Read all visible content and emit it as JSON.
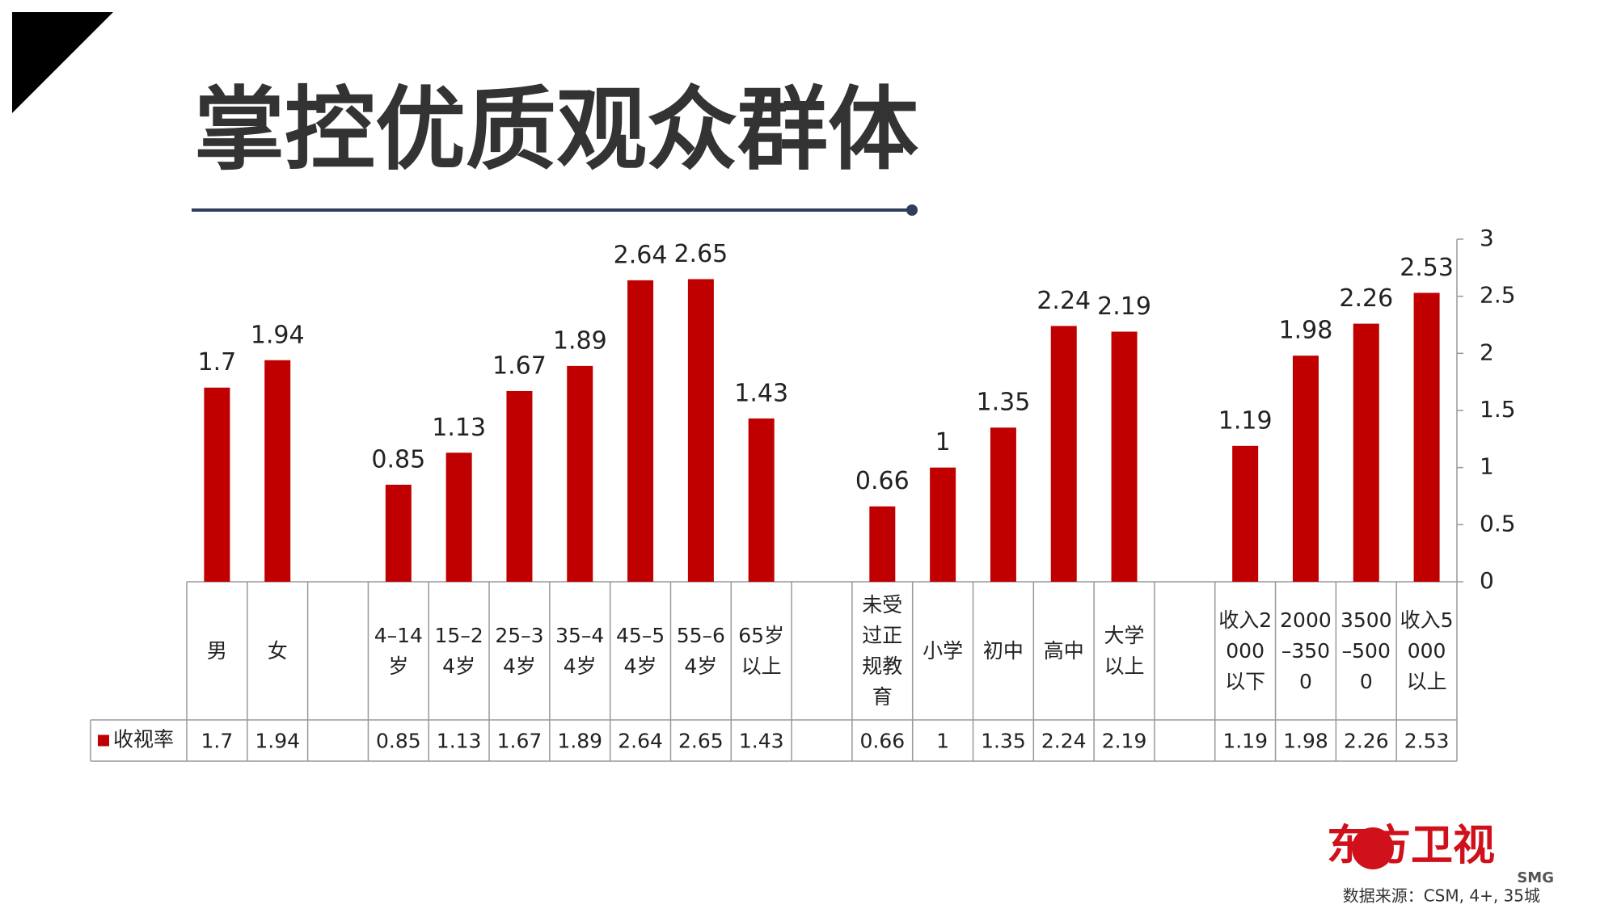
{
  "title": "掌控优质观众群体",
  "chart_data": {
    "type": "bar",
    "categories": [
      "男",
      "女",
      null,
      "4–14岁",
      "15–24岁",
      "25–34岁",
      "35–44岁",
      "45–54岁",
      "55–64岁",
      "65岁以上",
      null,
      "未受过正规教育",
      "小学",
      "初中",
      "高中",
      "大学以上",
      null,
      "收入2000以下",
      "2000–3500",
      "3500–5000",
      "收入5000以上"
    ],
    "series": [
      {
        "name": "收视率",
        "color": "#c00000",
        "values": [
          1.7,
          1.94,
          null,
          0.85,
          1.13,
          1.67,
          1.89,
          2.64,
          2.65,
          1.43,
          null,
          0.66,
          1,
          1.35,
          2.24,
          2.19,
          null,
          1.19,
          1.98,
          2.26,
          2.53
        ]
      }
    ],
    "ylim": [
      0,
      3
    ],
    "yticks": [
      0,
      0.5,
      1,
      1.5,
      2,
      2.5,
      3
    ],
    "y_axis_side": "right",
    "grid": false,
    "data_table": true
  },
  "footer": {
    "logo": "东方卫视",
    "logo_sub": "SMG",
    "source": "数据来源：CSM, 4+, 35城"
  }
}
